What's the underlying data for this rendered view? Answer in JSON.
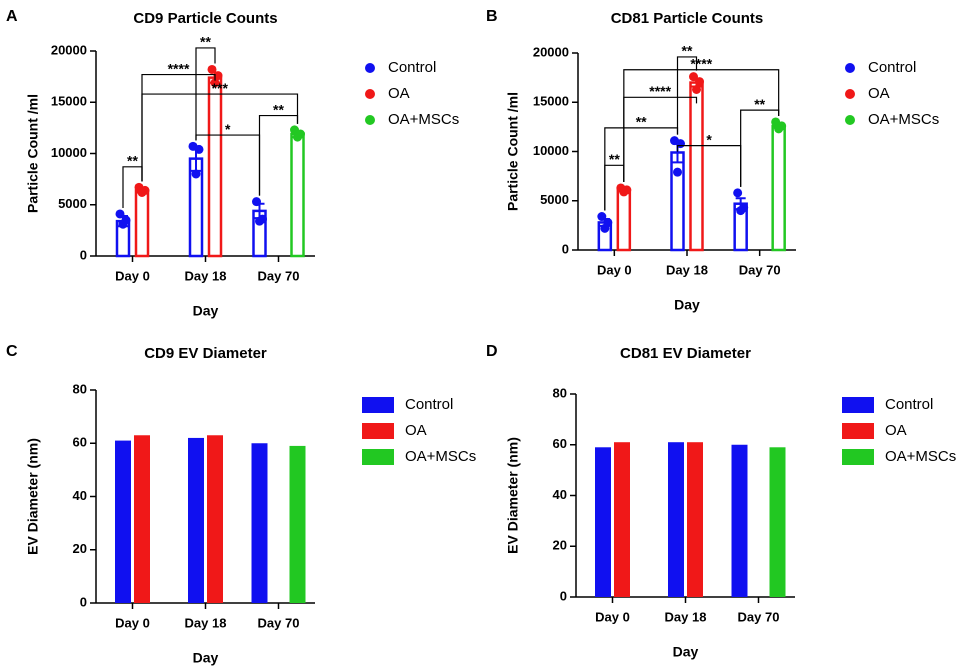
{
  "chart_data": [
    {
      "type": "bar",
      "panel_label": "A",
      "title": "CD9 Particle Counts",
      "xlabel": "Day",
      "ylabel": "Particle Count /ml",
      "filled": false,
      "categories": [
        "Day 0",
        "Day 18",
        "Day 70"
      ],
      "ylim": [
        0,
        20000
      ],
      "yticks": [
        0,
        5000,
        10000,
        15000,
        20000
      ],
      "series": [
        {
          "name": "Control",
          "color": "#1010f0",
          "values": [
            3400,
            9500,
            4400
          ],
          "errors": [
            500,
            1200,
            700
          ],
          "points": [
            [
              4100,
              3500,
              3100
            ],
            [
              10700,
              10400,
              8000
            ],
            [
              5300,
              3600,
              3400
            ]
          ]
        },
        {
          "name": "OA",
          "color": "#f01818",
          "values": [
            6400,
            17400,
            null
          ],
          "errors": [
            200,
            500,
            null
          ],
          "points": [
            [
              6700,
              6400,
              6200
            ],
            [
              18200,
              17600,
              16900
            ],
            null
          ]
        },
        {
          "name": "OA+MSCs",
          "color": "#22c822",
          "values": [
            null,
            null,
            11900
          ],
          "errors": [
            null,
            null,
            300
          ],
          "points": [
            null,
            null,
            [
              12300,
              11900,
              11600
            ]
          ]
        }
      ],
      "annotations": [
        {
          "text": "**",
          "from": {
            "category": "Day 0",
            "series": "Control"
          },
          "to": {
            "category": "Day 0",
            "series": "OA"
          },
          "y": 8700
        },
        {
          "text": "**",
          "from": {
            "category": "Day 18",
            "series": "Control"
          },
          "to": {
            "category": "Day 18",
            "series": "OA"
          },
          "y": 20300
        },
        {
          "text": "****",
          "from": {
            "category": "Day 0",
            "series": "OA"
          },
          "to": {
            "category": "Day 18",
            "series": "OA"
          },
          "y": 17700
        },
        {
          "text": "***",
          "from": {
            "category": "Day 0",
            "series": "OA"
          },
          "to": {
            "category": "Day 70",
            "series": "OA+MSCs"
          },
          "y": 15800
        },
        {
          "text": "**",
          "from": {
            "category": "Day 70",
            "series": "Control"
          },
          "to": {
            "category": "Day 70",
            "series": "OA+MSCs"
          },
          "y": 13700
        },
        {
          "text": "*",
          "from": {
            "category": "Day 18",
            "series": "Control"
          },
          "to": {
            "category": "Day 70",
            "series": "Control"
          },
          "y": 11800
        }
      ]
    },
    {
      "type": "bar",
      "panel_label": "B",
      "title": "CD81 Particle Counts",
      "xlabel": "Day",
      "ylabel": "Particle Count /ml",
      "filled": false,
      "categories": [
        "Day 0",
        "Day 18",
        "Day 70"
      ],
      "ylim": [
        0,
        20000
      ],
      "yticks": [
        0,
        5000,
        10000,
        15000,
        20000
      ],
      "series": [
        {
          "name": "Control",
          "color": "#1010f0",
          "values": [
            2800,
            9900,
            4700
          ],
          "errors": [
            350,
            1000,
            550
          ],
          "points": [
            [
              3400,
              2800,
              2200
            ],
            [
              11100,
              10800,
              7900
            ],
            [
              5800,
              4300,
              4000
            ]
          ]
        },
        {
          "name": "OA",
          "color": "#f01818",
          "values": [
            6100,
            17000,
            null
          ],
          "errors": [
            150,
            400,
            null
          ],
          "points": [
            [
              6300,
              6100,
              5900
            ],
            [
              17600,
              17100,
              16300
            ],
            null
          ]
        },
        {
          "name": "OA+MSCs",
          "color": "#22c822",
          "values": [
            null,
            null,
            12600
          ],
          "errors": [
            null,
            null,
            200
          ],
          "points": [
            null,
            null,
            [
              13000,
              12600,
              12300
            ]
          ]
        }
      ],
      "annotations": [
        {
          "text": "**",
          "from": {
            "category": "Day 0",
            "series": "Control"
          },
          "to": {
            "category": "Day 0",
            "series": "OA"
          },
          "y": 8600
        },
        {
          "text": "**",
          "from": {
            "category": "Day 18",
            "series": "Control"
          },
          "to": {
            "category": "Day 18",
            "series": "OA"
          },
          "y": 19600
        },
        {
          "text": "****",
          "from": {
            "category": "Day 0",
            "series": "OA"
          },
          "to": {
            "category": "Day 70",
            "series": "OA+MSCs"
          },
          "y": 18300
        },
        {
          "text": "****",
          "from": {
            "category": "Day 0",
            "series": "OA"
          },
          "to": {
            "category": "Day 18",
            "series": "OA"
          },
          "y": 15500
        },
        {
          "text": "**",
          "from": {
            "category": "Day 70",
            "series": "Control"
          },
          "to": {
            "category": "Day 70",
            "series": "OA+MSCs"
          },
          "y": 14200
        },
        {
          "text": "**",
          "from": {
            "category": "Day 0",
            "series": "Control"
          },
          "to": {
            "category": "Day 18",
            "series": "Control"
          },
          "y": 12400
        },
        {
          "text": "*",
          "from": {
            "category": "Day 18",
            "series": "Control"
          },
          "to": {
            "category": "Day 70",
            "series": "Control"
          },
          "y": 10600
        }
      ]
    },
    {
      "type": "bar",
      "panel_label": "C",
      "title": "CD9 EV Diameter",
      "xlabel": "Day",
      "ylabel": "EV Diameter (nm)",
      "filled": true,
      "categories": [
        "Day 0",
        "Day 18",
        "Day 70"
      ],
      "ylim": [
        0,
        80
      ],
      "yticks": [
        0,
        20,
        40,
        60,
        80
      ],
      "series": [
        {
          "name": "Control",
          "color": "#1010f0",
          "values": [
            61,
            62,
            60
          ]
        },
        {
          "name": "OA",
          "color": "#f01818",
          "values": [
            63,
            63,
            null
          ]
        },
        {
          "name": "OA+MSCs",
          "color": "#22c822",
          "values": [
            null,
            null,
            59
          ]
        }
      ]
    },
    {
      "type": "bar",
      "panel_label": "D",
      "title": "CD81 EV Diameter",
      "xlabel": "Day",
      "ylabel": "EV Diameter (nm)",
      "filled": true,
      "categories": [
        "Day 0",
        "Day 18",
        "Day 70"
      ],
      "ylim": [
        0,
        80
      ],
      "yticks": [
        0,
        20,
        40,
        60,
        80
      ],
      "series": [
        {
          "name": "Control",
          "color": "#1010f0",
          "values": [
            59,
            61,
            60
          ]
        },
        {
          "name": "OA",
          "color": "#f01818",
          "values": [
            61,
            61,
            null
          ]
        },
        {
          "name": "OA+MSCs",
          "color": "#22c822",
          "values": [
            null,
            null,
            59
          ]
        }
      ]
    }
  ]
}
